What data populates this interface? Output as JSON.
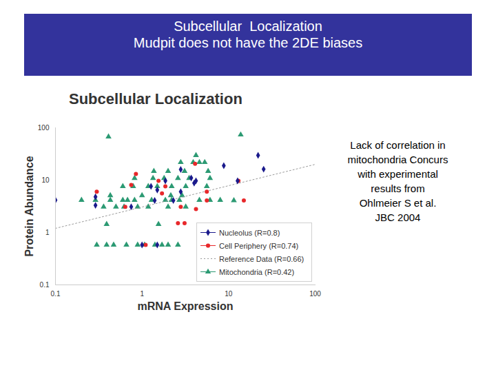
{
  "header": {
    "lines": [
      "Subcellular  Localization",
      "Mudpit does not have the 2DE biases"
    ]
  },
  "chart_data": {
    "type": "scatter",
    "title": "Subcellular Localization",
    "x_label": "mRNA Expression",
    "y_label": "Protein Abundance",
    "log": true,
    "xlim": [
      0.1,
      100
    ],
    "ylim": [
      0.1,
      100
    ],
    "xticks": [
      0.1,
      1,
      10,
      100
    ],
    "yticks": [
      0.1,
      1,
      10,
      100
    ],
    "grid": false,
    "legend": "lower right",
    "annotation": [
      "Lack of correlation in",
      "mitochondria Concurs",
      "with experimental",
      "results from",
      "Ohlmeier S et al.",
      "JBC 2004"
    ],
    "series": [
      {
        "name": "Nucleolus (R=0.8)",
        "color": "#1a1a8c",
        "marker": "diamond",
        "x": [
          0.1,
          0.29,
          0.29,
          0.75,
          1.27,
          1.5,
          1.86,
          2.8,
          3.7,
          4.0,
          4.2,
          2.8,
          8.8,
          12.7,
          21.9,
          25.4,
          1.4,
          1.0,
          1.5,
          2.3
        ],
        "y": [
          4.15,
          4.8,
          3.3,
          3.1,
          7.6,
          6.5,
          9.7,
          16,
          11,
          8.8,
          9.7,
          6,
          18.9,
          9.7,
          29.8,
          16.2,
          4.1,
          0.58,
          0.58,
          4.1
        ]
      },
      {
        "name": "Cell Periphery (R=0.74)",
        "color": "#e8282b",
        "marker": "circle",
        "x": [
          0.3,
          0.85,
          0.75,
          0.64,
          1.1,
          1.55,
          1.7,
          1.86,
          4.1,
          4.2,
          2.6,
          3.1,
          2.8,
          5.6,
          5.6,
          15,
          13
        ],
        "y": [
          6,
          13.1,
          8.1,
          3.1,
          0.58,
          9.7,
          5.6,
          7.6,
          20.6,
          2.8,
          1.5,
          1.5,
          3.1,
          4.1,
          6,
          4.1,
          9.7
        ]
      },
      {
        "name": "Reference Data (R=0.66)",
        "type": "line",
        "line_style": "dotted",
        "color": "#9a9a9a",
        "x": [
          0.1,
          100
        ],
        "y": [
          1.2,
          20
        ]
      },
      {
        "name": "Mitochondria (R=0.42)",
        "color": "#2c9a73",
        "marker": "triangle",
        "x": [
          0.3,
          0.39,
          0.47,
          0.66,
          0.89,
          1.07,
          1.41,
          1.7,
          2.0,
          2.6,
          0.39,
          1.55,
          0.2,
          0.29,
          0.43,
          0.6,
          0.68,
          0.82,
          1.29,
          1.86,
          2.2,
          2.7,
          4.6,
          6.1,
          8.0,
          0.36,
          0.5,
          0.62,
          0.89,
          1.18,
          2.0,
          3.2,
          0.43,
          1.0,
          2.15,
          2.9,
          0.6,
          0.79,
          1.18,
          1.5,
          2.2,
          3.2,
          5.6,
          0.82,
          1.34,
          1.8,
          2.6,
          3.5,
          6.1,
          1.37,
          2.0,
          3.1,
          5.8,
          2.8,
          3.9,
          4.6,
          5.3,
          4.2,
          0.41,
          13.8,
          11.5
        ],
        "y": [
          0.58,
          0.58,
          0.58,
          0.58,
          0.58,
          0.58,
          0.58,
          0.58,
          0.58,
          0.58,
          1.44,
          1.44,
          4.15,
          4.15,
          4.15,
          4.15,
          4.15,
          4.15,
          4.15,
          4.15,
          4.15,
          4.15,
          4.15,
          4.15,
          4.15,
          3.1,
          3.1,
          3.1,
          3.1,
          3.1,
          3.1,
          3.1,
          5.1,
          5.1,
          5.1,
          5.1,
          7.6,
          7.6,
          7.6,
          7.6,
          7.6,
          7.6,
          7.6,
          10.9,
          10.9,
          10.9,
          10.9,
          10.9,
          10.9,
          14.8,
          14.8,
          14.8,
          14.8,
          21.9,
          21.9,
          21.9,
          21.9,
          29.8,
          67.5,
          73.6,
          4.1
        ]
      }
    ]
  }
}
